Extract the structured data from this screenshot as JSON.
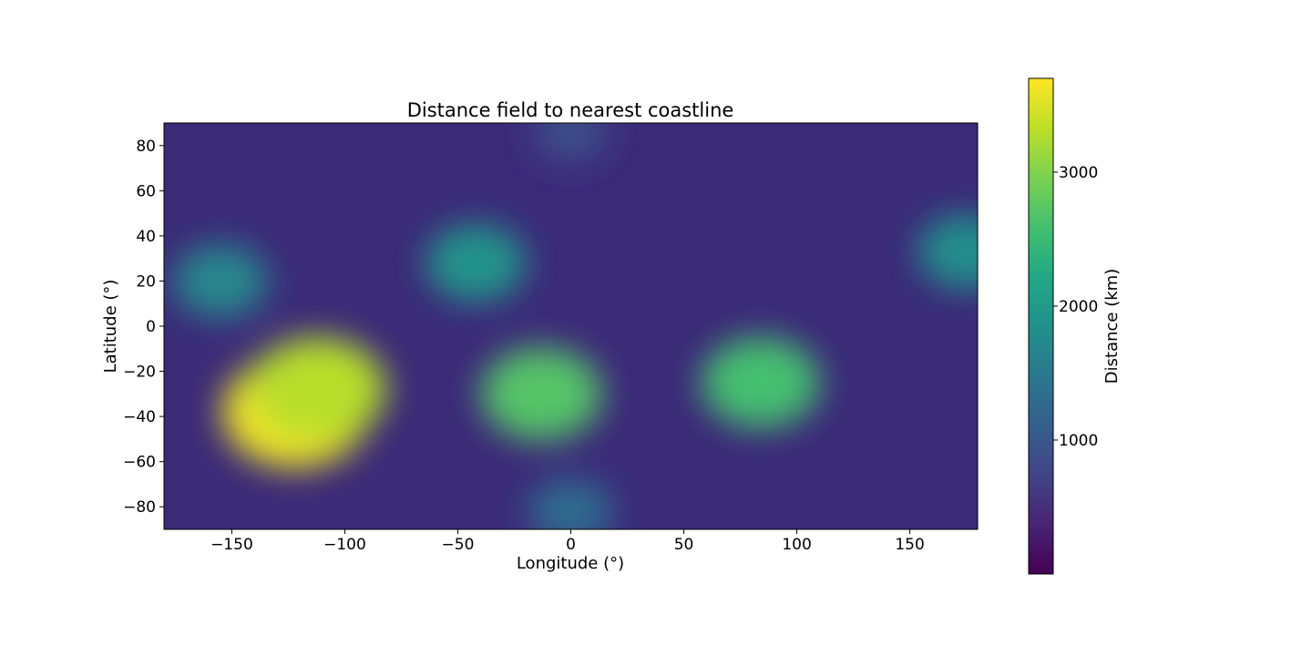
{
  "chart_data": {
    "type": "heatmap",
    "title": "Distance field to nearest coastline",
    "xlabel": "Longitude (°)",
    "ylabel": "Latitude (°)",
    "xlim": [
      -180,
      180
    ],
    "ylim": [
      -90,
      90
    ],
    "x_ticks": [
      {
        "value": -150,
        "label": "−150"
      },
      {
        "value": -100,
        "label": "−100"
      },
      {
        "value": -50,
        "label": "−50"
      },
      {
        "value": 0,
        "label": "0"
      },
      {
        "value": 50,
        "label": "50"
      },
      {
        "value": 100,
        "label": "100"
      },
      {
        "value": 150,
        "label": "150"
      }
    ],
    "y_ticks": [
      {
        "value": 80,
        "label": "80"
      },
      {
        "value": 60,
        "label": "60"
      },
      {
        "value": 40,
        "label": "40"
      },
      {
        "value": 20,
        "label": "20"
      },
      {
        "value": 0,
        "label": "0"
      },
      {
        "value": -20,
        "label": "−20"
      },
      {
        "value": -40,
        "label": "−40"
      },
      {
        "value": -60,
        "label": "−60"
      },
      {
        "value": -80,
        "label": "−80"
      }
    ],
    "colorbar": {
      "label": "Distance (km)",
      "colormap": "viridis",
      "range": [
        0,
        3700
      ],
      "ticks": [
        {
          "value": 1000,
          "label": "1000"
        },
        {
          "value": 2000,
          "label": "2000"
        },
        {
          "value": 3000,
          "label": "3000"
        }
      ]
    },
    "maxima": [
      {
        "lon": -122,
        "lat": -38,
        "value": 3650
      },
      {
        "lon": -112,
        "lat": -28,
        "value": 3300
      },
      {
        "lon": -13,
        "lat": -30,
        "value": 2700
      },
      {
        "lon": 84,
        "lat": -25,
        "value": 2600
      },
      {
        "lon": -155,
        "lat": 20,
        "value": 1700
      },
      {
        "lon": -42,
        "lat": 28,
        "value": 1900
      },
      {
        "lon": 175,
        "lat": 33,
        "value": 1800
      },
      {
        "lon": 0,
        "lat": -82,
        "value": 1300
      },
      {
        "lon": 0,
        "lat": 86,
        "value": 900
      }
    ],
    "grid": false,
    "legend": "none"
  }
}
